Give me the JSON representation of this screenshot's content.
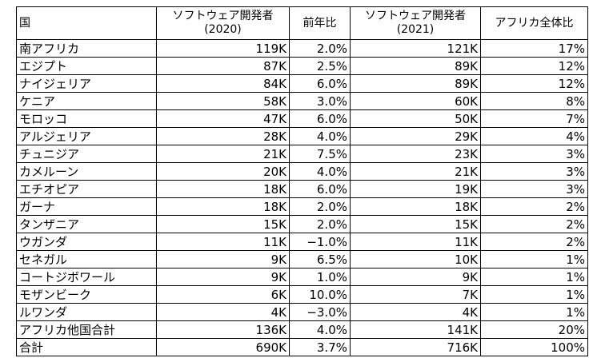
{
  "table": {
    "headers": [
      {
        "line1": "国",
        "line2": ""
      },
      {
        "line1": "ソフトウェア開発者",
        "line2": "(2020)"
      },
      {
        "line1": "前年比",
        "line2": ""
      },
      {
        "line1": "ソフトウェア開発者",
        "line2": "(2021)"
      },
      {
        "line1": "アフリカ全体比",
        "line2": ""
      }
    ],
    "rows": [
      [
        "南アフリカ",
        "119K",
        "2.0%",
        "121K",
        "17%"
      ],
      [
        "エジプト",
        "87K",
        "2.5%",
        "89K",
        "12%"
      ],
      [
        "ナイジェリア",
        "84K",
        "6.0%",
        "89K",
        "12%"
      ],
      [
        "ケニア",
        "58K",
        "3.0%",
        "60K",
        "8%"
      ],
      [
        "モロッコ",
        "47K",
        "6.0%",
        "50K",
        "7%"
      ],
      [
        "アルジェリア",
        "28K",
        "4.0%",
        "29K",
        "4%"
      ],
      [
        "チュニジア",
        "21K",
        "7.5%",
        "23K",
        "3%"
      ],
      [
        "カメルーン",
        "20K",
        "4.0%",
        "21K",
        "3%"
      ],
      [
        "エチオピア",
        "18K",
        "6.0%",
        "19K",
        "3%"
      ],
      [
        "ガーナ",
        "18K",
        "2.0%",
        "18K",
        "2%"
      ],
      [
        "タンザニア",
        "15K",
        "2.0%",
        "15K",
        "2%"
      ],
      [
        "ウガンダ",
        "11K",
        "−1.0%",
        "11K",
        "2%"
      ],
      [
        "セネガル",
        "9K",
        "6.5%",
        "10K",
        "1%"
      ],
      [
        "コートジボワール",
        "9K",
        "1.0%",
        "9K",
        "1%"
      ],
      [
        "モザンビーク",
        "6K",
        "10.0%",
        "7K",
        "1%"
      ],
      [
        "ルワンダ",
        "4K",
        "−3.0%",
        "4K",
        "1%"
      ],
      [
        "アフリカ他国合計",
        "136K",
        "4.0%",
        "141K",
        "20%"
      ],
      [
        "合計",
        "690K",
        "3.7%",
        "716K",
        "100%"
      ]
    ]
  }
}
